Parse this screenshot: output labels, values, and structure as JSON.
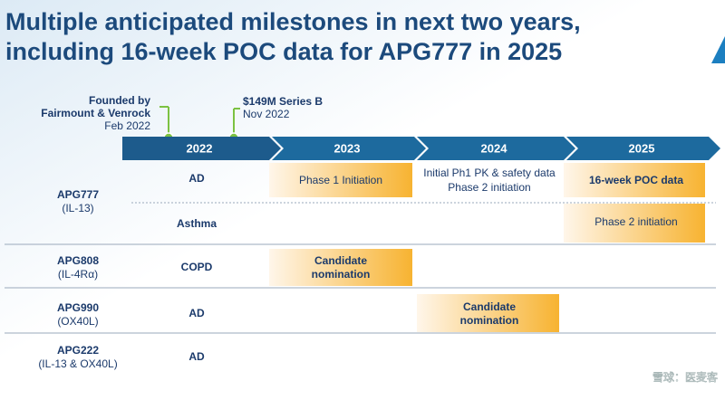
{
  "header": {
    "title_lines": [
      "Multiple anticipated milestones in next two years,",
      "including 16-week POC data for APG777 in 2025"
    ]
  },
  "milestones": [
    {
      "lines": [
        "Founded by",
        "Fairmount & Venrock"
      ],
      "date": "Feb 2022"
    },
    {
      "lines": [
        "$149M Series B"
      ],
      "date": "Nov 2022"
    }
  ],
  "years": [
    "2022",
    "2023",
    "2024",
    "2025"
  ],
  "programs": [
    {
      "name": "APG777",
      "target": "(IL-13)",
      "rows": [
        {
          "indication": "AD",
          "events": [
            {
              "lines": [
                "Phase 1 Initiation"
              ]
            },
            {
              "lines": [
                "Initial Ph1 PK & safety data",
                "Phase 2 initiation"
              ]
            },
            {
              "lines": [
                "16-week POC data"
              ]
            }
          ]
        },
        {
          "indication": "Asthma",
          "events": [
            {
              "lines": [
                "Phase 2 initiation"
              ]
            }
          ]
        }
      ]
    },
    {
      "name": "APG808",
      "target": "(IL-4Rα)",
      "rows": [
        {
          "indication": "COPD",
          "events": [
            {
              "lines": [
                "Candidate",
                "nomination"
              ]
            }
          ]
        }
      ]
    },
    {
      "name": "APG990",
      "target": "(OX40L)",
      "rows": [
        {
          "indication": "AD",
          "events": [
            {
              "lines": [
                "Candidate",
                "nomination"
              ]
            }
          ]
        }
      ]
    },
    {
      "name": "APG222",
      "target": "(IL-13 & OX40L)",
      "rows": [
        {
          "indication": "AD",
          "events": []
        }
      ]
    }
  ],
  "watermark": "雪球：医麦客"
}
